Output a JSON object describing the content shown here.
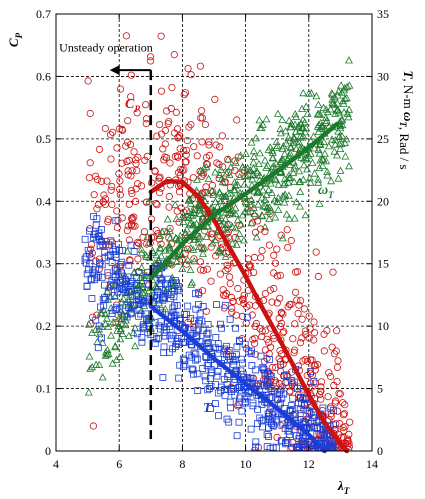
{
  "chart_data": {
    "type": "scatter",
    "xlabel": "λ_T",
    "ylabel_left": "C_P",
    "ylabel_right": "T, N-m    ω_T, Rad / s",
    "xlim": [
      4,
      14
    ],
    "ylim_left": [
      0,
      0.7
    ],
    "ylim_right": [
      0,
      35
    ],
    "x_ticks": [
      4,
      6,
      8,
      10,
      12,
      14
    ],
    "y_left_ticks": [
      0,
      0.1,
      0.2,
      0.3,
      0.4,
      0.5,
      0.6,
      0.7
    ],
    "y_right_ticks": [
      0,
      5,
      10,
      15,
      20,
      25,
      30,
      35
    ],
    "grid": true,
    "annotations": {
      "unsteady_text": "Unsteady operation",
      "unsteady_boundary_x": 7.0,
      "arrow_tip_x": 5.7,
      "arrow_y": 0.61
    },
    "series": [
      {
        "name": "C_P",
        "label_main": "C",
        "label_sub": "P",
        "axis": "left",
        "color": "#cc1111",
        "marker": "circle",
        "scatter": {
          "x_range": [
            5.0,
            13.3
          ],
          "y_spread": 0.09
        },
        "fit": {
          "x": [
            7.0,
            7.5,
            8.0,
            8.5,
            9.0,
            9.5,
            10.0,
            10.5,
            11.0,
            11.5,
            12.0,
            12.5,
            13.0,
            13.2
          ],
          "y": [
            0.415,
            0.432,
            0.431,
            0.408,
            0.37,
            0.325,
            0.28,
            0.232,
            0.186,
            0.138,
            0.09,
            0.045,
            0.012,
            0.0
          ]
        }
      },
      {
        "name": "ω_T",
        "label_main": "ω",
        "label_sub": "T",
        "axis": "right",
        "color": "#1c7a2c",
        "marker": "triangle",
        "scatter": {
          "x_range": [
            5.0,
            13.3
          ],
          "y_spread": 2.0
        },
        "fit": {
          "x": [
            7.0,
            8.0,
            9.0,
            10.0,
            11.0,
            12.0,
            12.9
          ],
          "y": [
            13.8,
            16.6,
            18.9,
            20.6,
            22.4,
            24.3,
            26.2
          ]
        }
      },
      {
        "name": "T",
        "label_main": "T",
        "axis": "right",
        "color": "#1a3ed6",
        "marker": "square",
        "scatter": {
          "x_range": [
            4.9,
            12.8
          ],
          "y_spread": 2.0
        },
        "fit": {
          "x": [
            7.0,
            8.0,
            9.0,
            10.0,
            11.0,
            12.0,
            12.5
          ],
          "y": [
            11.6,
            9.6,
            7.4,
            5.4,
            3.4,
            1.3,
            0.0
          ]
        }
      }
    ]
  }
}
